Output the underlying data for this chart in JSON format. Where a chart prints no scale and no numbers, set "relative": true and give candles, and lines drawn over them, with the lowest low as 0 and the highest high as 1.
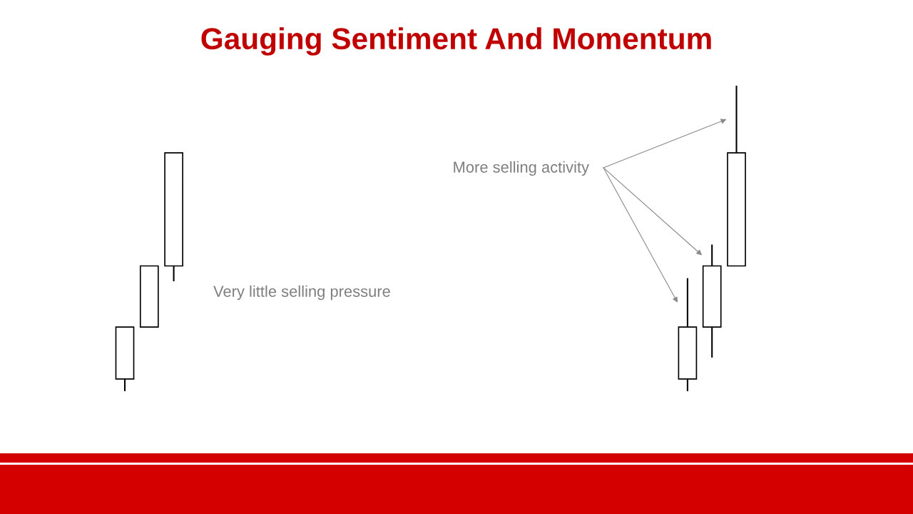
{
  "chart_data": {
    "type": "candlestick",
    "title": "Gauging Sentiment And Momentum",
    "categories": [
      null,
      null,
      null,
      null,
      null,
      null,
      null,
      null,
      null,
      null,
      null,
      null,
      null,
      null,
      null,
      null,
      null,
      null,
      null,
      null,
      null,
      null,
      null,
      null,
      null,
      null
    ],
    "ohlc": [
      [
        0.04,
        0.21,
        0,
        0.21
      ],
      [
        0.21,
        0.41,
        0.21,
        0.41
      ],
      [
        0.41,
        0.78,
        0.36,
        0.78
      ],
      null,
      null,
      null,
      null,
      null,
      null,
      null,
      null,
      null,
      null,
      null,
      null,
      null,
      null,
      null,
      null,
      null,
      null,
      null,
      null,
      [
        0.04,
        0.37,
        0,
        0.21
      ],
      [
        0.21,
        0.48,
        0.11,
        0.41
      ],
      [
        0.41,
        1,
        0.41,
        0.78
      ]
    ],
    "relative": true,
    "annotations": [
      "Very little selling pressure",
      "More selling activity"
    ]
  }
}
